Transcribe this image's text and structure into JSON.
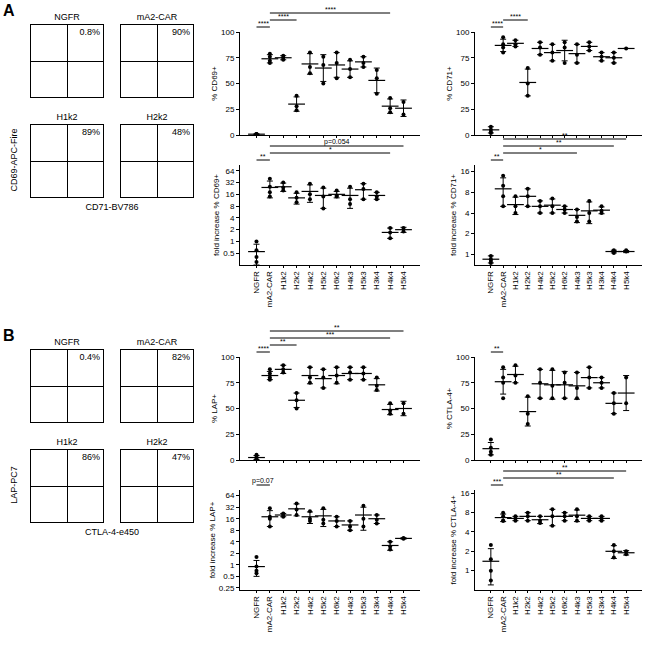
{
  "chart_data": [
    {
      "type": "scatter",
      "y_label": "% CD69+",
      "categories": [
        "NGFR",
        "mA2-CAR",
        "H1k2",
        "H2k2",
        "H4k2",
        "H5k2",
        "H6k2",
        "H4k3",
        "H5k3",
        "H3k4",
        "H4k4",
        "H5k4"
      ],
      "points": [
        [
          1,
          0.5,
          1,
          0.5
        ],
        [
          79,
          72,
          76,
          70
        ],
        [
          77,
          73,
          75
        ],
        [
          38,
          28,
          24
        ],
        [
          80,
          66,
          60
        ],
        [
          76,
          68,
          50
        ],
        [
          80,
          70,
          55
        ],
        [
          73,
          64,
          56
        ],
        [
          76,
          70,
          66
        ],
        [
          63,
          55,
          40
        ],
        [
          36,
          26,
          22
        ],
        [
          32,
          20
        ]
      ],
      "means": [
        0.8,
        74,
        75,
        30,
        69,
        65,
        68,
        64,
        71,
        53,
        28,
        26
      ],
      "errors": [
        0.3,
        4,
        2,
        7,
        10,
        13,
        12,
        8,
        5,
        12,
        7,
        8
      ],
      "ylim": [
        0,
        100
      ],
      "yticks": [
        0,
        25,
        50,
        75,
        100
      ],
      "grid": false,
      "tick_labels": "y",
      "color": "#000000",
      "marker": "circle",
      "brackets": [
        {
          "from": "NGFR",
          "to": "mA2-CAR",
          "label": "****"
        },
        {
          "from": "mA2-CAR",
          "to": "H2k2",
          "label": "****"
        },
        {
          "from": "mA2-CAR",
          "to": "H4k4",
          "label": "****"
        }
      ]
    },
    {
      "type": "scatter",
      "y_label": "% CD71+",
      "categories": [
        "NGFR",
        "mA2-CAR",
        "H1k2",
        "H2k2",
        "H4k2",
        "H5k2",
        "H6k2",
        "H4k3",
        "H5k3",
        "H3k4",
        "H4k4",
        "H5k4"
      ],
      "points": [
        [
          8,
          5,
          3,
          2
        ],
        [
          95,
          88,
          85,
          80
        ],
        [
          92,
          88,
          86
        ],
        [
          65,
          50,
          38
        ],
        [
          90,
          85,
          78
        ],
        [
          88,
          80,
          72
        ],
        [
          90,
          85,
          70
        ],
        [
          88,
          78,
          70
        ],
        [
          90,
          86,
          82
        ],
        [
          80,
          76,
          72
        ],
        [
          80,
          75,
          70
        ],
        [
          84
        ]
      ],
      "means": [
        5,
        87,
        89,
        51,
        84,
        80,
        82,
        79,
        86,
        76,
        75,
        84
      ],
      "errors": [
        3,
        6,
        3,
        13,
        6,
        8,
        10,
        9,
        4,
        4,
        5,
        0
      ],
      "ylim": [
        0,
        100
      ],
      "yticks": [
        0,
        25,
        50,
        75,
        100
      ],
      "grid": false,
      "tick_labels": "y",
      "color": "#000000",
      "marker": "circle",
      "brackets": [
        {
          "from": "NGFR",
          "to": "mA2-CAR",
          "label": "****"
        },
        {
          "from": "mA2-CAR",
          "to": "H2k2",
          "label": "****"
        }
      ]
    },
    {
      "type": "scatter",
      "y_label": "fold increase % CD69+",
      "categories": [
        "NGFR",
        "mA2-CAR",
        "H1k2",
        "H2k2",
        "H4k2",
        "H5k2",
        "H6k2",
        "H4k3",
        "H5k3",
        "H3k4",
        "H4k4",
        "H5k4"
      ],
      "points": [
        [
          1,
          0.6,
          0.4,
          0.3
        ],
        [
          40,
          25,
          18,
          14
        ],
        [
          32,
          24,
          20
        ],
        [
          18,
          13,
          10
        ],
        [
          30,
          16,
          12
        ],
        [
          24,
          14,
          7
        ],
        [
          20,
          15,
          14
        ],
        [
          25,
          12,
          9
        ],
        [
          30,
          22,
          12
        ],
        [
          18,
          14,
          12
        ],
        [
          2.2,
          1.7,
          1.2
        ],
        [
          2.2,
          1.8
        ]
      ],
      "means": [
        0.55,
        24,
        25,
        13,
        19,
        15,
        16,
        15,
        21,
        15,
        1.7,
        2.0
      ],
      "errors": [
        0.3,
        11,
        6,
        4,
        9,
        8,
        3,
        8,
        9,
        3,
        0.5,
        0.3
      ],
      "log": "y",
      "ylim": [
        0.25,
        90
      ],
      "yticks": [
        0.5,
        1,
        2,
        4,
        8,
        16,
        32,
        64
      ],
      "grid": false,
      "color": "#000000",
      "marker": "circle",
      "brackets": [
        {
          "from": "NGFR",
          "to": "mA2-CAR",
          "label": "**"
        },
        {
          "from": "mA2-CAR",
          "to": "H4k4",
          "label": "*"
        },
        {
          "from": "mA2-CAR",
          "to": "H5k4",
          "label": "p=0.054"
        }
      ]
    },
    {
      "type": "scatter",
      "y_label": "fold increase % CD71+",
      "categories": [
        "NGFR",
        "mA2-CAR",
        "H1k2",
        "H2k2",
        "H4k2",
        "H5k2",
        "H6k2",
        "H4k3",
        "H5k3",
        "H3k4",
        "H4k4",
        "H5k4"
      ],
      "points": [
        [
          0.95,
          0.85,
          0.8,
          0.75
        ],
        [
          14,
          10,
          7,
          5
        ],
        [
          7,
          5,
          4
        ],
        [
          9,
          7,
          5
        ],
        [
          6,
          5,
          4
        ],
        [
          6.5,
          5,
          4
        ],
        [
          5,
          4.5,
          4
        ],
        [
          4.5,
          3.5,
          3
        ],
        [
          6,
          4,
          3
        ],
        [
          5,
          4.3,
          4
        ],
        [
          1.15,
          1.1,
          1.05
        ],
        [
          1.15,
          1.1
        ]
      ],
      "means": [
        0.85,
        9,
        5.3,
        7,
        5,
        5.2,
        4.5,
        3.7,
        4.3,
        4.4,
        1.1,
        1.1
      ],
      "errors": [
        0.1,
        4,
        1.5,
        2,
        1,
        1.2,
        0.5,
        0.8,
        1.5,
        0.5,
        0.05,
        0.04
      ],
      "log": "y",
      "ylim": [
        0.7,
        20
      ],
      "yticks": [
        1,
        2,
        4,
        8,
        16
      ],
      "grid": false,
      "color": "#000000",
      "marker": "circle",
      "brackets": [
        {
          "from": "NGFR",
          "to": "mA2-CAR",
          "label": "**"
        },
        {
          "from": "mA2-CAR",
          "to": "H4k3",
          "label": "*"
        },
        {
          "from": "mA2-CAR",
          "to": "H4k4",
          "label": "**"
        },
        {
          "from": "mA2-CAR",
          "to": "H5k4",
          "label": "**"
        }
      ]
    },
    {
      "type": "scatter",
      "y_label": "% LAP+",
      "categories": [
        "NGFR",
        "mA2-CAR",
        "H1k2",
        "H2k2",
        "H4k2",
        "H5k2",
        "H6k2",
        "H4k3",
        "H5k3",
        "H3k4",
        "H4k4",
        "H5k4"
      ],
      "points": [
        [
          5,
          3,
          1,
          0.5
        ],
        [
          88,
          84,
          80,
          78
        ],
        [
          92,
          88,
          85
        ],
        [
          65,
          58,
          50
        ],
        [
          90,
          80,
          75
        ],
        [
          88,
          80,
          70
        ],
        [
          90,
          82,
          75
        ],
        [
          90,
          85,
          78
        ],
        [
          90,
          84,
          78
        ],
        [
          80,
          72,
          68
        ],
        [
          55,
          48,
          45
        ],
        [
          55,
          45
        ]
      ],
      "means": [
        2.4,
        82,
        88,
        58,
        82,
        79,
        82,
        84,
        84,
        73,
        49,
        50
      ],
      "errors": [
        2,
        4,
        4,
        7,
        8,
        9,
        8,
        6,
        6,
        6,
        5,
        7
      ],
      "ylim": [
        0,
        100
      ],
      "yticks": [
        0,
        25,
        50,
        75,
        100
      ],
      "grid": false,
      "tick_labels": "y",
      "color": "#000000",
      "marker": "circle",
      "brackets": [
        {
          "from": "NGFR",
          "to": "mA2-CAR",
          "label": "****"
        },
        {
          "from": "mA2-CAR",
          "to": "H2k2",
          "label": "**"
        },
        {
          "from": "mA2-CAR",
          "to": "H4k4",
          "label": "***"
        },
        {
          "from": "mA2-CAR",
          "to": "H5k4",
          "label": "**"
        }
      ]
    },
    {
      "type": "scatter",
      "y_label": "% CTLA-4+",
      "categories": [
        "NGFR",
        "mA2-CAR",
        "H1k2",
        "H2k2",
        "H4k2",
        "H5k2",
        "H6k2",
        "H4k3",
        "H5k3",
        "H3k4",
        "H4k4",
        "H5k4"
      ],
      "points": [
        [
          20,
          12,
          8,
          5
        ],
        [
          90,
          80,
          75,
          60
        ],
        [
          92,
          82,
          75
        ],
        [
          62,
          45,
          35
        ],
        [
          88,
          75,
          60
        ],
        [
          88,
          72,
          60
        ],
        [
          85,
          75,
          60
        ],
        [
          85,
          70,
          60
        ],
        [
          90,
          80,
          70
        ],
        [
          80,
          75,
          70
        ],
        [
          65,
          55,
          45
        ],
        [
          80,
          55
        ]
      ],
      "means": [
        11,
        76,
        83,
        47,
        74,
        73,
        73,
        72,
        80,
        75,
        55,
        65
      ],
      "errors": [
        6,
        12,
        8,
        14,
        14,
        14,
        13,
        13,
        10,
        5,
        10,
        17
      ],
      "ylim": [
        0,
        100
      ],
      "yticks": [
        0,
        25,
        50,
        75,
        100
      ],
      "grid": false,
      "tick_labels": "y",
      "color": "#000000",
      "marker": "circle",
      "brackets": [
        {
          "from": "NGFR",
          "to": "mA2-CAR",
          "label": "**"
        }
      ]
    },
    {
      "type": "scatter",
      "y_label": "fold increase % LAP+",
      "categories": [
        "NGFR",
        "mA2-CAR",
        "H1k2",
        "H2k2",
        "H4k2",
        "H5k2",
        "H6k2",
        "H4k3",
        "H5k3",
        "H3k4",
        "H4k4",
        "H5k4"
      ],
      "points": [
        [
          1.6,
          0.9,
          0.7,
          0.6
        ],
        [
          30,
          18,
          16,
          10
        ],
        [
          22,
          20,
          18
        ],
        [
          40,
          28,
          20
        ],
        [
          25,
          16,
          14
        ],
        [
          30,
          15,
          12
        ],
        [
          18,
          14,
          10
        ],
        [
          14,
          10,
          8
        ],
        [
          35,
          16,
          10
        ],
        [
          20,
          15,
          12
        ],
        [
          4,
          3,
          2.5
        ],
        [
          5,
          4.8
        ]
      ],
      "means": [
        0.9,
        18,
        20,
        29,
        18,
        19,
        14,
        11,
        20,
        16,
        3.2,
        4.9
      ],
      "errors": [
        0.4,
        8,
        2,
        10,
        6,
        9,
        4,
        3,
        12,
        4,
        0.8,
        0.2
      ],
      "log": "y",
      "ylim": [
        0.22,
        90
      ],
      "yticks": [
        0.25,
        0.5,
        1,
        2,
        4,
        8,
        16,
        32,
        64
      ],
      "grid": false,
      "color": "#000000",
      "marker": "circle",
      "brackets": [
        {
          "from": "NGFR",
          "to": "mA2-CAR",
          "label": "p=0.07"
        }
      ]
    },
    {
      "type": "scatter",
      "y_label": "fold increase % CTLA-4+",
      "categories": [
        "NGFR",
        "mA2-CAR",
        "H1k2",
        "H2k2",
        "H4k2",
        "H5k2",
        "H6k2",
        "H4k3",
        "H5k3",
        "H3k4",
        "H4k4",
        "H5k4"
      ],
      "points": [
        [
          2.5,
          1.5,
          1,
          0.7
        ],
        [
          8,
          7,
          6,
          6
        ],
        [
          7,
          6.5,
          6
        ],
        [
          8,
          7,
          6
        ],
        [
          7,
          6,
          5.5
        ],
        [
          9,
          7,
          5
        ],
        [
          8,
          7,
          6
        ],
        [
          9,
          7,
          6
        ],
        [
          7,
          6.5,
          6
        ],
        [
          7,
          6.5,
          6
        ],
        [
          2.5,
          2,
          1.6
        ],
        [
          2,
          1.8
        ]
      ],
      "means": [
        1.4,
        6.7,
        6.5,
        7,
        6.2,
        7,
        7,
        7.3,
        6.5,
        6.5,
        2,
        1.9
      ],
      "errors": [
        0.8,
        0.9,
        0.5,
        1,
        0.8,
        2,
        1,
        1.5,
        0.5,
        0.5,
        0.45,
        0.15
      ],
      "log": "y",
      "ylim": [
        0.5,
        18
      ],
      "yticks": [
        1,
        2,
        4,
        8,
        16
      ],
      "grid": false,
      "color": "#000000",
      "marker": "circle",
      "brackets": [
        {
          "from": "NGFR",
          "to": "mA2-CAR",
          "label": "***"
        },
        {
          "from": "mA2-CAR",
          "to": "H4k4",
          "label": "**"
        },
        {
          "from": "mA2-CAR",
          "to": "H5k4",
          "label": "**"
        }
      ]
    }
  ],
  "flow": [
    {
      "panel": "A",
      "y_label": "CD69-APC-Fire",
      "x_label": "CD71-BV786",
      "plots": [
        {
          "title": "NGFR",
          "label": "0.8%"
        },
        {
          "title": "mA2-CAR",
          "label": "90%"
        },
        {
          "title": "H1k2",
          "label": "89%"
        },
        {
          "title": "H2k2",
          "label": "48%"
        }
      ]
    },
    {
      "panel": "B",
      "y_label": "LAP-PC7",
      "x_label": "CTLA-4-e450",
      "plots": [
        {
          "title": "NGFR",
          "label": "0.4%"
        },
        {
          "title": "mA2-CAR",
          "label": "82%"
        },
        {
          "title": "H1k2",
          "label": "86%"
        },
        {
          "title": "H2k2",
          "label": "47%"
        }
      ]
    }
  ]
}
